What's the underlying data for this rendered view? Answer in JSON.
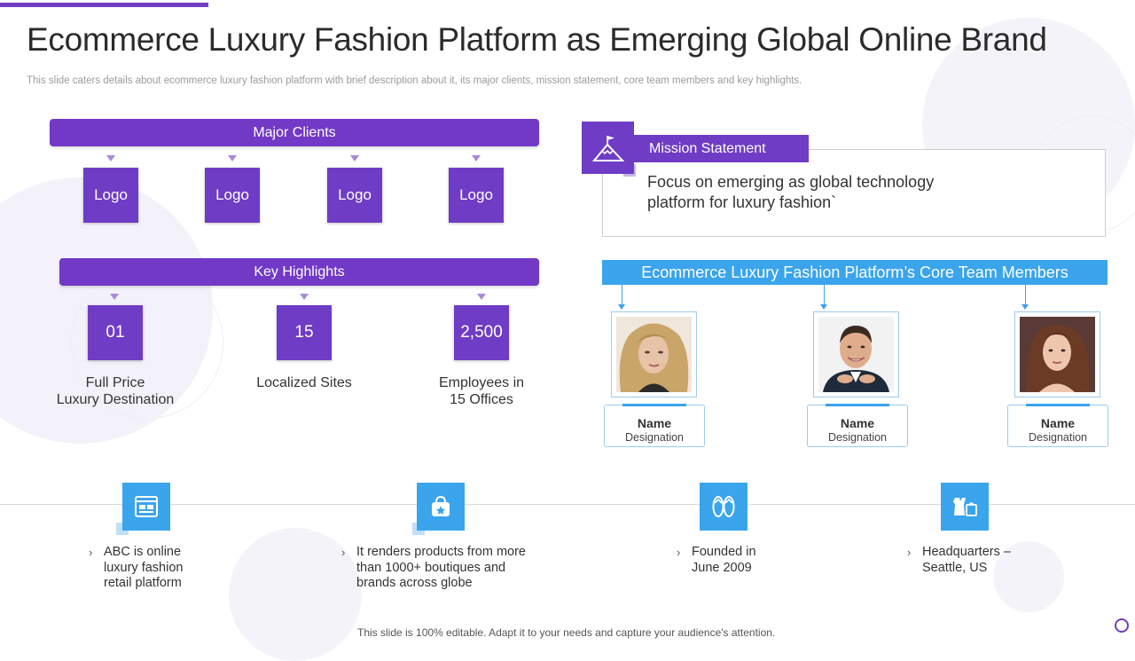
{
  "title": "Ecommerce Luxury Fashion Platform as Emerging Global Online Brand",
  "subtitle": "This slide caters details about ecommerce luxury fashion platform with brief description about it, its major clients, mission statement, core team members and key highlights.",
  "colors": {
    "purple": "#6f3cc5",
    "blue": "#3aa4ec"
  },
  "major_clients": {
    "header": "Major Clients",
    "logos": [
      "Logo",
      "Logo",
      "Logo",
      "Logo"
    ]
  },
  "key_highlights": {
    "header": "Key Highlights",
    "items": [
      {
        "value": "01",
        "label_line1": "Full Price",
        "label_line2": "Luxury  Destination"
      },
      {
        "value": "15",
        "label_line1": "Localized Sites",
        "label_line2": ""
      },
      {
        "value": "2,500",
        "label_line1": "Employees in",
        "label_line2": "15 Offices"
      }
    ]
  },
  "mission": {
    "icon": "mountain-flag-icon",
    "label": "Mission Statement",
    "text_line1": "Focus on emerging as global technology",
    "text_line2": "platform for luxury  fashion`"
  },
  "team": {
    "header": "Ecommerce Luxury Fashion Platform’s Core Team Members",
    "members": [
      {
        "name": "Name",
        "designation": "Designation"
      },
      {
        "name": "Name",
        "designation": "Designation"
      },
      {
        "name": "Name",
        "designation": "Designation"
      }
    ]
  },
  "facts": [
    {
      "icon": "browser-shop-icon",
      "line1": "ABC is online",
      "line2": "luxury fashion",
      "line3": "retail platform"
    },
    {
      "icon": "shopping-bag-icon",
      "line1": "It renders products from more",
      "line2": "than 1000+ boutiques and",
      "line3": "brands across globe"
    },
    {
      "icon": "flip-flops-icon",
      "line1": "Founded in",
      "line2": "June 2009",
      "line3": ""
    },
    {
      "icon": "clothing-icon",
      "line1": "Headquarters –",
      "line2": "Seattle, US",
      "line3": ""
    }
  ],
  "bullet_glyph": "›",
  "footer": "This slide is 100% editable. Adapt it to your needs and capture your audience's attention."
}
